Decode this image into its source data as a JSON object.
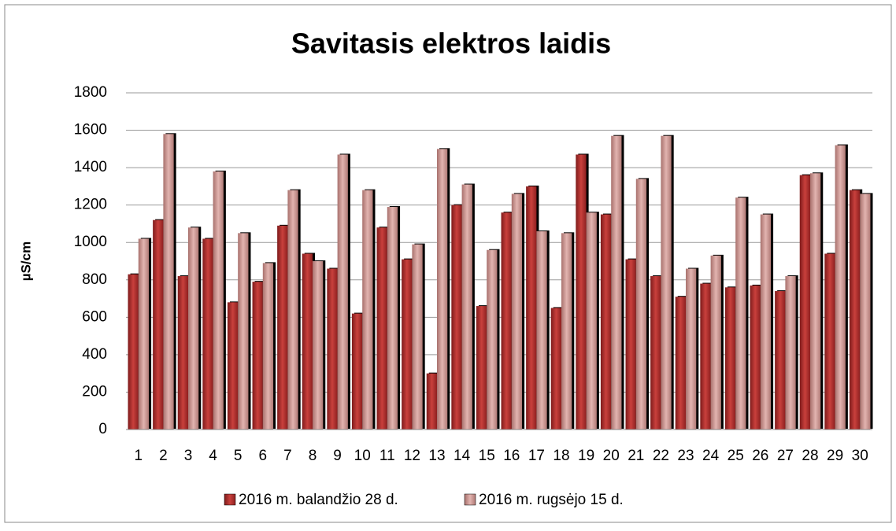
{
  "chart_data": {
    "type": "bar",
    "title": "Savitasis elektros laidis",
    "y_label": "µS/cm",
    "categories": [
      "1",
      "2",
      "3",
      "4",
      "5",
      "6",
      "7",
      "8",
      "9",
      "10",
      "11",
      "12",
      "13",
      "14",
      "15",
      "16",
      "17",
      "18",
      "19",
      "20",
      "21",
      "22",
      "23",
      "24",
      "25",
      "26",
      "27",
      "28",
      "29",
      "30"
    ],
    "series": [
      {
        "name": "2016 m. balandžio 28 d.",
        "color": "#b8312f",
        "values": [
          830,
          1120,
          820,
          1020,
          680,
          790,
          1090,
          940,
          860,
          620,
          1080,
          910,
          300,
          1200,
          660,
          1160,
          1300,
          650,
          1470,
          1150,
          910,
          820,
          710,
          780,
          760,
          770,
          740,
          1360,
          940,
          1280
        ]
      },
      {
        "name": "2016 m. rugsėjo 15 d.",
        "color": "#d4a09c",
        "values": [
          1020,
          1580,
          1080,
          1380,
          1050,
          890,
          1280,
          900,
          1470,
          1280,
          1190,
          990,
          1500,
          1310,
          960,
          1260,
          1060,
          1050,
          1160,
          1570,
          1340,
          1570,
          860,
          930,
          1240,
          1150,
          820,
          1370,
          1520,
          1260
        ]
      }
    ],
    "ylim": [
      0,
      1800
    ],
    "yticks": [
      0,
      200,
      400,
      600,
      800,
      1000,
      1200,
      1400,
      1600,
      1800
    ],
    "grid": true,
    "legend": "bottom"
  }
}
